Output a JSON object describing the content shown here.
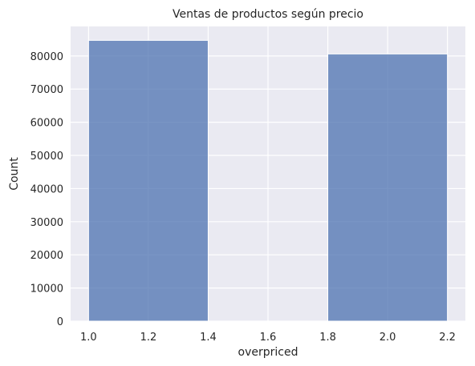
{
  "chart_data": {
    "type": "bar",
    "title": "Ventas de productos según precio",
    "xlabel": "overpriced",
    "ylabel": "Count",
    "xlim": [
      0.94,
      2.26
    ],
    "ylim": [
      0,
      88900
    ],
    "xticks": [
      1.0,
      1.2,
      1.4,
      1.6,
      1.8,
      2.0,
      2.2
    ],
    "xtick_labels": [
      "1.0",
      "1.2",
      "1.4",
      "1.6",
      "1.8",
      "2.0",
      "2.2"
    ],
    "yticks": [
      0,
      10000,
      20000,
      30000,
      40000,
      50000,
      60000,
      70000,
      80000
    ],
    "ytick_labels": [
      "0",
      "10000",
      "20000",
      "30000",
      "40000",
      "50000",
      "60000",
      "70000",
      "80000"
    ],
    "bins": [
      {
        "x0": 1.0,
        "x1": 1.4,
        "count": 84700
      },
      {
        "x0": 1.4,
        "x1": 1.8,
        "count": 0
      },
      {
        "x0": 1.8,
        "x1": 2.2,
        "count": 80600
      }
    ],
    "grid": true,
    "colors": {
      "background": "#eaeaf2",
      "bar": "#4c72b0",
      "grid": "#ffffff"
    }
  }
}
